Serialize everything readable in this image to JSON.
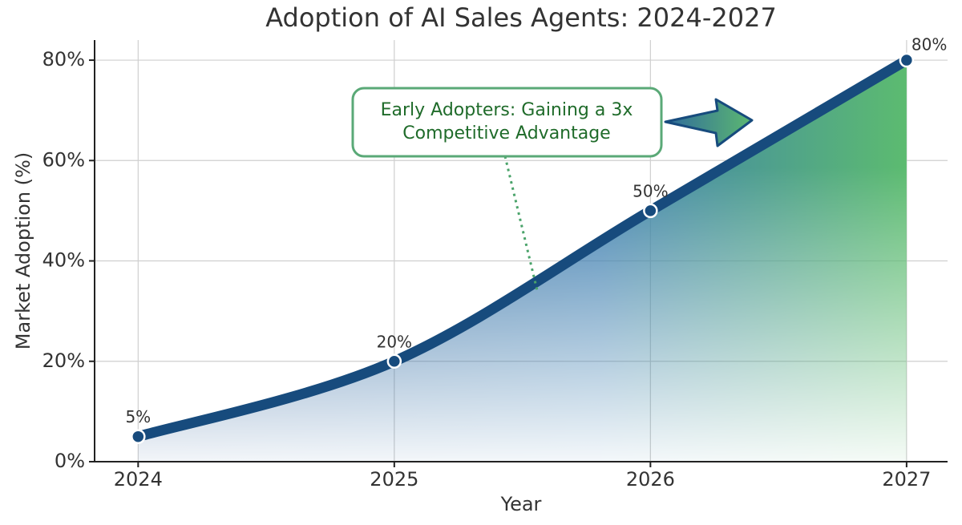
{
  "chart_data": {
    "type": "line",
    "title": "Adoption of AI Sales Agents: 2024-2027",
    "x_label": "Year",
    "y_label": "Market Adoption (%)",
    "x": [
      2024,
      2025,
      2026,
      2027
    ],
    "series": [
      {
        "color": "#174b7d",
        "values": [
          5,
          20,
          50,
          80
        ],
        "value_labels": [
          "5%",
          "20%",
          "50%",
          "80%"
        ]
      }
    ],
    "xlim": [
      2023.83,
      2027.16
    ],
    "xticks": [
      2024,
      2025,
      2026,
      2027
    ],
    "ylim": [
      0,
      84
    ],
    "yticks": [
      {
        "value": 0,
        "label": "0%"
      },
      {
        "value": 20,
        "label": "20%"
      },
      {
        "value": 40,
        "label": "40%"
      },
      {
        "value": 60,
        "label": "60%"
      },
      {
        "value": 80,
        "label": "80%"
      }
    ],
    "grid": true,
    "annotation": [
      "Early Adopters: Gaining a 3x",
      "Competitive Advantage"
    ]
  }
}
